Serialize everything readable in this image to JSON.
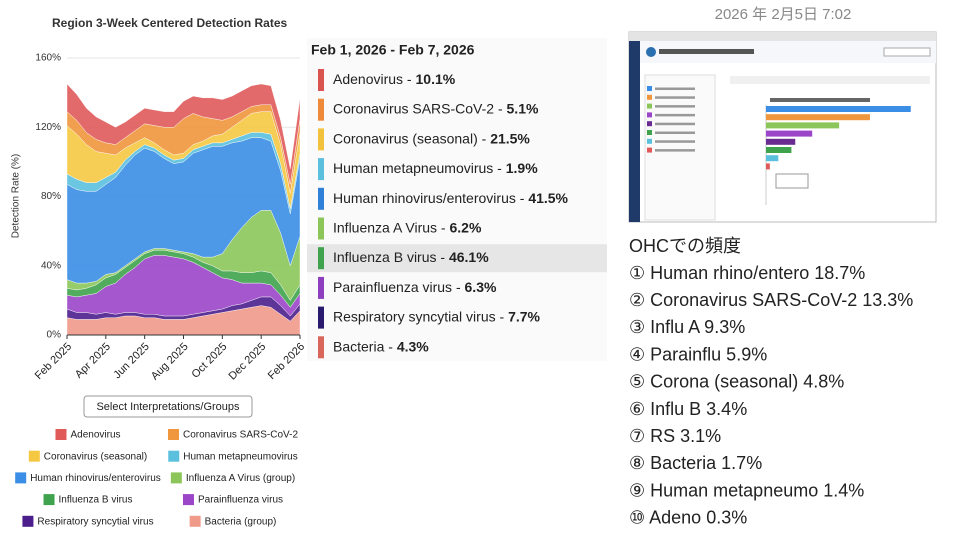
{
  "chart_data": [
    {
      "type": "stacked-area",
      "title": "Region 3-Week Centered Detection Rates",
      "y_label": "Detection Rate (%)",
      "categories": [
        "Feb 2025",
        null,
        null,
        null,
        "Apr 2025",
        null,
        null,
        null,
        "Jun 2025",
        null,
        null,
        null,
        "Aug 2025",
        null,
        null,
        null,
        "Oct 2025",
        null,
        null,
        null,
        "Dec 2025",
        null,
        null,
        null,
        "Feb 2026"
      ],
      "ylim": [
        0,
        160
      ],
      "yticks": [
        {
          "value": 0,
          "label": "0%"
        },
        {
          "value": 40,
          "label": "40%"
        },
        {
          "value": 80,
          "label": "80%"
        },
        {
          "value": 120,
          "label": "120%"
        },
        {
          "value": 160,
          "label": "160%"
        }
      ],
      "grid": true,
      "button": "Select Interpretations/Groups",
      "series": [
        {
          "name": "Adenovirus",
          "color": "#e05a5a",
          "values": [
            16,
            15,
            14,
            13,
            12,
            10,
            9,
            9,
            9,
            9,
            9,
            9,
            10,
            10,
            11,
            12,
            12,
            12,
            12,
            12,
            12,
            11,
            10,
            9,
            12
          ]
        },
        {
          "name": "Coronavirus SARS-CoV-2",
          "color": "#f0963c",
          "values": [
            8,
            8,
            7,
            7,
            6,
            6,
            6,
            7,
            8,
            10,
            13,
            16,
            20,
            18,
            14,
            10,
            8,
            6,
            5,
            4,
            4,
            4,
            4,
            5,
            8
          ]
        },
        {
          "name": "Coronavirus (seasonal)",
          "color": "#f5c842",
          "values": [
            28,
            26,
            22,
            18,
            14,
            10,
            7,
            5,
            4,
            3,
            3,
            3,
            3,
            3,
            3,
            4,
            5,
            7,
            9,
            11,
            12,
            13,
            11,
            9,
            12
          ]
        },
        {
          "name": "Human metapneumovirus",
          "color": "#5bc0de",
          "values": [
            6,
            6,
            5,
            5,
            4,
            3,
            3,
            2,
            2,
            2,
            2,
            2,
            2,
            2,
            2,
            2,
            2,
            2,
            3,
            3,
            3,
            4,
            4,
            3,
            3
          ]
        },
        {
          "name": "Human rhinovirus/enterovirus",
          "color": "#3a8ee6",
          "values": [
            55,
            54,
            53,
            52,
            52,
            55,
            58,
            60,
            60,
            56,
            52,
            50,
            52,
            58,
            62,
            64,
            62,
            56,
            50,
            46,
            42,
            40,
            36,
            30,
            45
          ]
        },
        {
          "name": "Influenza A Virus (group)",
          "color": "#8cc65a",
          "values": [
            5,
            4,
            3,
            2,
            2,
            1,
            1,
            1,
            1,
            1,
            1,
            1,
            1,
            2,
            3,
            5,
            10,
            18,
            26,
            32,
            35,
            36,
            30,
            20,
            28
          ]
        },
        {
          "name": "Influenza B virus",
          "color": "#3fa34d",
          "values": [
            4,
            4,
            4,
            5,
            5,
            5,
            4,
            4,
            3,
            3,
            3,
            3,
            3,
            3,
            3,
            4,
            4,
            5,
            6,
            6,
            7,
            7,
            6,
            4,
            5
          ]
        },
        {
          "name": "Parainfluenza virus",
          "color": "#9b45c8",
          "values": [
            8,
            9,
            10,
            12,
            15,
            18,
            22,
            26,
            32,
            34,
            35,
            34,
            33,
            30,
            26,
            22,
            18,
            15,
            12,
            10,
            8,
            7,
            6,
            5,
            6
          ]
        },
        {
          "name": "Respiratory syncytial virus",
          "color": "#4b1e8c",
          "values": [
            5,
            4,
            4,
            3,
            3,
            2,
            2,
            2,
            2,
            2,
            2,
            2,
            2,
            2,
            2,
            2,
            2,
            3,
            3,
            4,
            5,
            6,
            5,
            3,
            4
          ]
        },
        {
          "name": "Bacteria (group)",
          "color": "#f09a8a",
          "values": [
            10,
            9,
            9,
            9,
            10,
            10,
            11,
            11,
            10,
            10,
            9,
            9,
            9,
            10,
            11,
            12,
            13,
            14,
            15,
            16,
            17,
            16,
            12,
            8,
            14
          ]
        }
      ]
    },
    {
      "type": "hbar",
      "xlim": [
        0,
        200
      ],
      "values": [
        188,
        135,
        95,
        60,
        38,
        33,
        16,
        5
      ],
      "colors": [
        "#3a8ee6",
        "#f0963c",
        "#8cc65a",
        "#9b45c8",
        "#6a2c91",
        "#3fa34d",
        "#5bc0de",
        "#e05a5a"
      ]
    }
  ],
  "rates_panel": {
    "header": "Feb 1, 2026 - Feb 7, 2026",
    "items": [
      {
        "name": "Adenovirus",
        "rate": "10.1%",
        "color": "#d9534f"
      },
      {
        "name": "Coronavirus SARS-CoV-2",
        "rate": "5.1%",
        "color": "#ee8a3a"
      },
      {
        "name": "Coronavirus (seasonal)",
        "rate": "21.5%",
        "color": "#f3c23c"
      },
      {
        "name": "Human metapneumovirus",
        "rate": "1.9%",
        "color": "#5bc0de"
      },
      {
        "name": "Human rhinovirus/enterovirus",
        "rate": "41.5%",
        "color": "#2f80d8"
      },
      {
        "name": "Influenza A Virus",
        "rate": "6.2%",
        "color": "#8cc65a"
      },
      {
        "name": "Influenza B virus",
        "rate": "46.1%",
        "color": "#3fa34d",
        "highlighted": true
      },
      {
        "name": "Parainfluenza virus",
        "rate": "6.3%",
        "color": "#8e3fbf"
      },
      {
        "name": "Respiratory syncytial virus",
        "rate": "7.7%",
        "color": "#2a1a6e"
      },
      {
        "name": "Bacteria",
        "rate": "4.3%",
        "color": "#d9665a"
      }
    ]
  },
  "timestamp": "2026 年 2月5日 7:02",
  "ohc": {
    "heading": "OHCでの頻度",
    "items": [
      "① Human rhino/entero 18.7%",
      "② Coronavirus SARS-CoV-2 13.3%",
      "③ Influ  A 9.3%",
      "④ Parainflu 5.9%",
      "⑤ Corona (seasonal) 4.8%",
      "⑥ Influ  B 3.4%",
      "⑦ RS 3.1%",
      "⑧ Bacteria 1.7%",
      "⑨ Human metapneumo 1.4%",
      "⑩ Adeno 0.3%"
    ]
  }
}
